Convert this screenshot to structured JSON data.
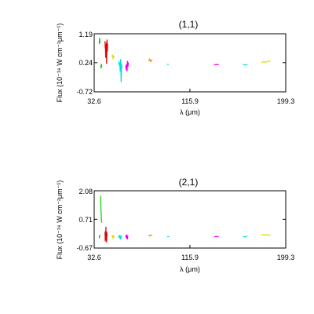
{
  "chart_data": [
    {
      "type": "line",
      "title": "(1,1)",
      "xlabel": "λ (μm)",
      "ylabel": "Flux (10⁻¹⁸ W cm⁻²μm⁻¹)",
      "xlim": [
        32.6,
        199.3
      ],
      "ylim": [
        -0.72,
        1.19
      ],
      "xticks": [
        "32.6",
        "115.9",
        "199.3"
      ],
      "yticks": [
        "1.19",
        "0.24",
        "-0.72"
      ],
      "grid": false,
      "series": [
        {
          "color": "#00cc00",
          "points": [
            [
              37.0,
              0.85
            ],
            [
              37.3,
              1.05
            ],
            [
              37.6,
              0.95
            ],
            [
              37.9,
              0.9
            ]
          ]
        },
        {
          "color": "#00cc00",
          "points": [
            [
              38.3,
              0.15
            ],
            [
              38.6,
              0.05
            ],
            [
              38.9,
              0.2
            ],
            [
              39.2,
              0.1
            ]
          ]
        },
        {
          "color": "#dd0000",
          "points": [
            [
              42.0,
              0.95
            ],
            [
              42.2,
              0.7
            ],
            [
              42.4,
              0.85
            ],
            [
              42.6,
              0.4
            ],
            [
              42.8,
              0.8
            ],
            [
              43.0,
              0.65
            ],
            [
              43.2,
              0.9
            ],
            [
              43.4,
              0.2
            ],
            [
              43.6,
              0.75
            ],
            [
              43.8,
              1.0
            ],
            [
              44.0,
              0.6
            ],
            [
              44.3,
              0.85
            ]
          ]
        },
        {
          "color": "#dddd00",
          "points": [
            [
              48.0,
              0.45
            ],
            [
              48.5,
              0.5
            ],
            [
              49.0,
              0.35
            ],
            [
              49.5,
              0.45
            ],
            [
              50.0,
              0.4
            ]
          ]
        },
        {
          "color": "#00dddd",
          "points": [
            [
              54.0,
              0.3
            ],
            [
              54.4,
              0.15
            ],
            [
              54.8,
              0.25
            ],
            [
              55.2,
              -0.05
            ],
            [
              55.6,
              0.35
            ],
            [
              56.0,
              -0.4
            ],
            [
              56.4,
              0.2
            ],
            [
              56.8,
              0.05
            ]
          ]
        },
        {
          "color": "#ee00ee",
          "points": [
            [
              60.0,
              0.15
            ],
            [
              60.4,
              0.0
            ],
            [
              60.8,
              0.2
            ],
            [
              61.2,
              -0.05
            ],
            [
              61.6,
              0.3
            ],
            [
              62.0,
              0.1
            ],
            [
              62.4,
              0.25
            ]
          ]
        },
        {
          "color": "#ee8800",
          "points": [
            [
              80.0,
              0.3
            ],
            [
              80.8,
              0.35
            ],
            [
              81.6,
              0.28
            ],
            [
              82.4,
              0.33
            ],
            [
              83.2,
              0.3
            ]
          ]
        },
        {
          "color": "#00dddd",
          "points": [
            [
              96.0,
              0.18
            ],
            [
              96.8,
              0.18
            ],
            [
              97.6,
              0.18
            ]
          ]
        },
        {
          "color": "#ee00ee",
          "points": [
            [
              137.0,
              0.17
            ],
            [
              139.0,
              0.18
            ],
            [
              141.0,
              0.17
            ]
          ]
        },
        {
          "color": "#00dddd",
          "points": [
            [
              162.0,
              0.18
            ],
            [
              164.0,
              0.16
            ],
            [
              166.0,
              0.18
            ]
          ]
        },
        {
          "color": "#dddd00",
          "points": [
            [
              178.0,
              0.24
            ],
            [
              180.0,
              0.28
            ],
            [
              182.0,
              0.25
            ],
            [
              184.0,
              0.3
            ],
            [
              186.0,
              0.28
            ]
          ]
        }
      ]
    },
    {
      "type": "line",
      "title": "(2,1)",
      "xlabel": "λ (μm)",
      "ylabel": "Flux (10⁻¹⁸ W cm⁻²μm⁻¹)",
      "xlim": [
        32.6,
        199.3
      ],
      "ylim": [
        -0.67,
        2.08
      ],
      "xticks": [
        "32.6",
        "115.9",
        "199.3"
      ],
      "yticks": [
        "2.08",
        "0.71",
        "-0.67"
      ],
      "grid": false,
      "series": [
        {
          "color": "#00cc00",
          "points": [
            [
              37.0,
              -0.2
            ],
            [
              37.3,
              -0.05
            ],
            [
              37.6,
              -0.15
            ]
          ]
        },
        {
          "color": "#00cc00",
          "points": [
            [
              38.2,
              1.85
            ],
            [
              38.5,
              1.2
            ],
            [
              38.8,
              0.8
            ],
            [
              39.1,
              0.55
            ]
          ]
        },
        {
          "color": "#dd0000",
          "points": [
            [
              42.0,
              0.1
            ],
            [
              42.2,
              -0.35
            ],
            [
              42.4,
              0.15
            ],
            [
              42.6,
              -0.3
            ],
            [
              42.8,
              0.35
            ],
            [
              43.0,
              -0.2
            ],
            [
              43.2,
              0.05
            ],
            [
              43.4,
              -0.4
            ],
            [
              43.6,
              0.1
            ],
            [
              43.8,
              -0.1
            ]
          ]
        },
        {
          "color": "#dddd00",
          "points": [
            [
              48.0,
              -0.05
            ],
            [
              48.5,
              -0.15
            ],
            [
              49.0,
              -0.05
            ],
            [
              49.5,
              -0.2
            ],
            [
              50.0,
              -0.08
            ]
          ]
        },
        {
          "color": "#00dddd",
          "points": [
            [
              54.0,
              -0.05
            ],
            [
              54.5,
              -0.2
            ],
            [
              55.0,
              -0.05
            ],
            [
              55.5,
              -0.25
            ],
            [
              56.0,
              -0.1
            ],
            [
              56.5,
              -0.15
            ]
          ]
        },
        {
          "color": "#ee00ee",
          "points": [
            [
              60.0,
              -0.05
            ],
            [
              60.5,
              -0.2
            ],
            [
              61.0,
              -0.02
            ],
            [
              61.5,
              -0.25
            ],
            [
              62.0,
              -0.08
            ]
          ]
        },
        {
          "color": "#ee8800",
          "points": [
            [
              80.0,
              -0.1
            ],
            [
              81.0,
              -0.05
            ],
            [
              82.0,
              -0.08
            ],
            [
              83.0,
              -0.03
            ]
          ]
        },
        {
          "color": "#00dddd",
          "points": [
            [
              96.0,
              -0.12
            ],
            [
              97.0,
              -0.12
            ],
            [
              98.0,
              -0.12
            ]
          ]
        },
        {
          "color": "#ee00ee",
          "points": [
            [
              137.0,
              -0.13
            ],
            [
              139.0,
              -0.11
            ],
            [
              141.0,
              -0.13
            ]
          ]
        },
        {
          "color": "#00dddd",
          "points": [
            [
              162.0,
              -0.11
            ],
            [
              164.0,
              -0.13
            ],
            [
              166.0,
              -0.09
            ]
          ]
        },
        {
          "color": "#dddd00",
          "points": [
            [
              178.0,
              -0.05
            ],
            [
              180.0,
              -0.02
            ],
            [
              182.0,
              -0.05
            ],
            [
              184.0,
              -0.03
            ],
            [
              186.0,
              -0.08
            ]
          ]
        }
      ]
    }
  ]
}
